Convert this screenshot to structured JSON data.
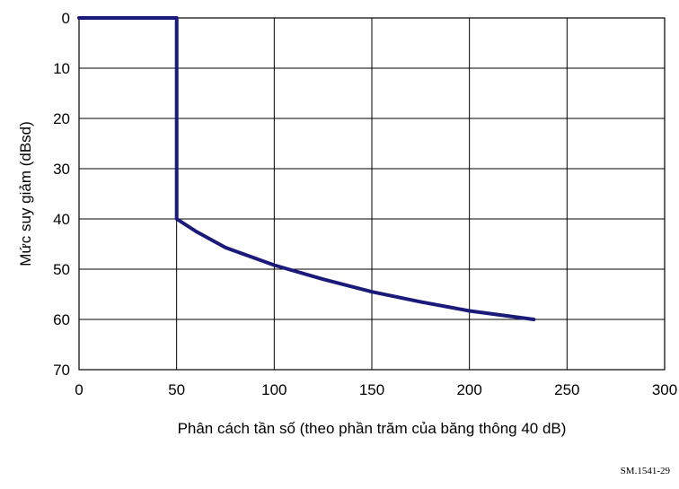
{
  "chart_data": {
    "type": "line",
    "xlabel": "Phân cách tần số (theo phần trăm của băng thông 40 dB)",
    "ylabel": "Mức suy giảm (dBsd)",
    "xlim": [
      0,
      300
    ],
    "ylim": [
      0,
      70
    ],
    "y_inverted": true,
    "grid": true,
    "x_ticks": [
      "0",
      "50",
      "100",
      "150",
      "200",
      "250",
      "300"
    ],
    "y_ticks": [
      "0",
      "10",
      "20",
      "30",
      "40",
      "50",
      "60",
      "70"
    ],
    "series": [
      {
        "color": "#1a1a7a",
        "x": [
          0,
          50,
          50,
          60,
          75,
          100,
          125,
          150,
          175,
          200,
          233
        ],
        "y": [
          0,
          0,
          40,
          42.5,
          45.7,
          49.2,
          52,
          54.5,
          56.5,
          58.3,
          60
        ]
      }
    ],
    "reference": "SM.1541-29"
  }
}
